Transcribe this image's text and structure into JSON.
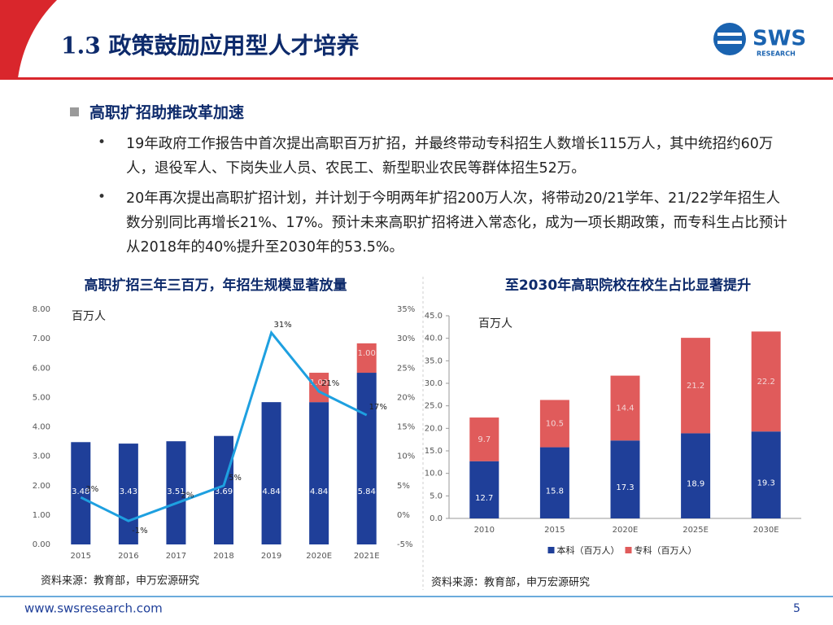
{
  "header": {
    "title": "1.3 政策鼓励应用型人才培养"
  },
  "logo": {
    "name": "SWS",
    "sub": "RESEARCH"
  },
  "section": {
    "heading": "高职扩招助推改革加速",
    "bullets": [
      "19年政府工作报告中首次提出高职百万扩招，并最终带动专科招生人数增长115万人，其中统招约60万人，退役军人、下岗失业人员、农民工、新型职业农民等群体招生52万。",
      "20年再次提出高职扩招计划，并计划于今明两年扩招200万人次，将带动20/21学年、21/22学年招生人数分别同比再增长21%、17%。预计未来高职扩招将进入常态化，成为一项长期政策，而专科生占比预计从2018年的40%提升至2030年的53.5%。"
    ]
  },
  "chart_data": [
    {
      "type": "bar",
      "stacked": true,
      "title": "高职扩招三年三百万，年招生规模显著放量",
      "unit_label": "百万人",
      "source": "资料来源：教育部，申万宏源研究",
      "categories": [
        "2015",
        "2016",
        "2017",
        "2018",
        "2019",
        "2020E",
        "2021E"
      ],
      "series": [
        {
          "color": "#1f3f99",
          "values": [
            3.48,
            3.43,
            3.51,
            3.69,
            4.84,
            4.84,
            5.84
          ]
        },
        {
          "color": "#e05b5b",
          "values": [
            null,
            null,
            null,
            null,
            null,
            1,
            1
          ],
          "value_labels": [
            null,
            null,
            null,
            null,
            null,
            "1.00",
            "1.00"
          ]
        },
        {
          "type": "line",
          "axis": "y2",
          "color": "#1ea0e0",
          "values": [
            3,
            -1,
            2,
            5,
            31,
            21,
            17
          ],
          "value_labels": [
            "3%",
            "-1%",
            "2%",
            "5%",
            "31%",
            "21%",
            "17%"
          ]
        }
      ],
      "ylim": [
        0,
        8
      ],
      "yticks": [
        {
          "value": 0,
          "label": "0.00"
        },
        {
          "value": 1,
          "label": "1.00"
        },
        {
          "value": 2,
          "label": "2.00"
        },
        {
          "value": 3,
          "label": "3.00"
        },
        {
          "value": 4,
          "label": "4.00"
        },
        {
          "value": 5,
          "label": "5.00"
        },
        {
          "value": 6,
          "label": "6.00"
        },
        {
          "value": 7,
          "label": "7.00"
        },
        {
          "value": 8,
          "label": "8.00"
        }
      ],
      "y2lim": [
        -5,
        35
      ],
      "y2ticks": [
        {
          "value": -5,
          "label": "-5%"
        },
        {
          "value": 0,
          "label": "0%"
        },
        {
          "value": 5,
          "label": "5%"
        },
        {
          "value": 10,
          "label": "10%"
        },
        {
          "value": 15,
          "label": "15%"
        },
        {
          "value": 20,
          "label": "20%"
        },
        {
          "value": 25,
          "label": "25%"
        },
        {
          "value": 30,
          "label": "30%"
        },
        {
          "value": 35,
          "label": "35%"
        }
      ],
      "grid": false
    },
    {
      "type": "bar",
      "stacked": true,
      "title": "至2030年高职院校在校生占比显著提升",
      "unit_label": "百万人",
      "source": "资料来源：教育部，申万宏源研究",
      "legend": "bottom",
      "categories": [
        "2010",
        "2015",
        "2020E",
        "2025E",
        "2030E"
      ],
      "series": [
        {
          "name": "本科（百万人）",
          "color": "#1f3f99",
          "values": [
            12.7,
            15.8,
            17.3,
            18.9,
            19.3
          ]
        },
        {
          "name": "专科（百万人）",
          "color": "#e05b5b",
          "values": [
            9.7,
            10.5,
            14.4,
            21.2,
            22.2
          ]
        }
      ],
      "ylim": [
        0,
        45
      ],
      "yticks": [
        {
          "value": 0,
          "label": "0.0"
        },
        {
          "value": 5,
          "label": "5.0"
        },
        {
          "value": 10,
          "label": "10.0"
        },
        {
          "value": 15,
          "label": "15.0"
        },
        {
          "value": 20,
          "label": "20.0"
        },
        {
          "value": 25,
          "label": "25.0"
        },
        {
          "value": 30,
          "label": "30.0"
        },
        {
          "value": 35,
          "label": "35.0"
        },
        {
          "value": 40,
          "label": "40.0"
        },
        {
          "value": 45,
          "label": "45.0"
        }
      ],
      "grid": false
    }
  ],
  "footer": {
    "url": "www.swsresearch.com",
    "page": 5
  }
}
